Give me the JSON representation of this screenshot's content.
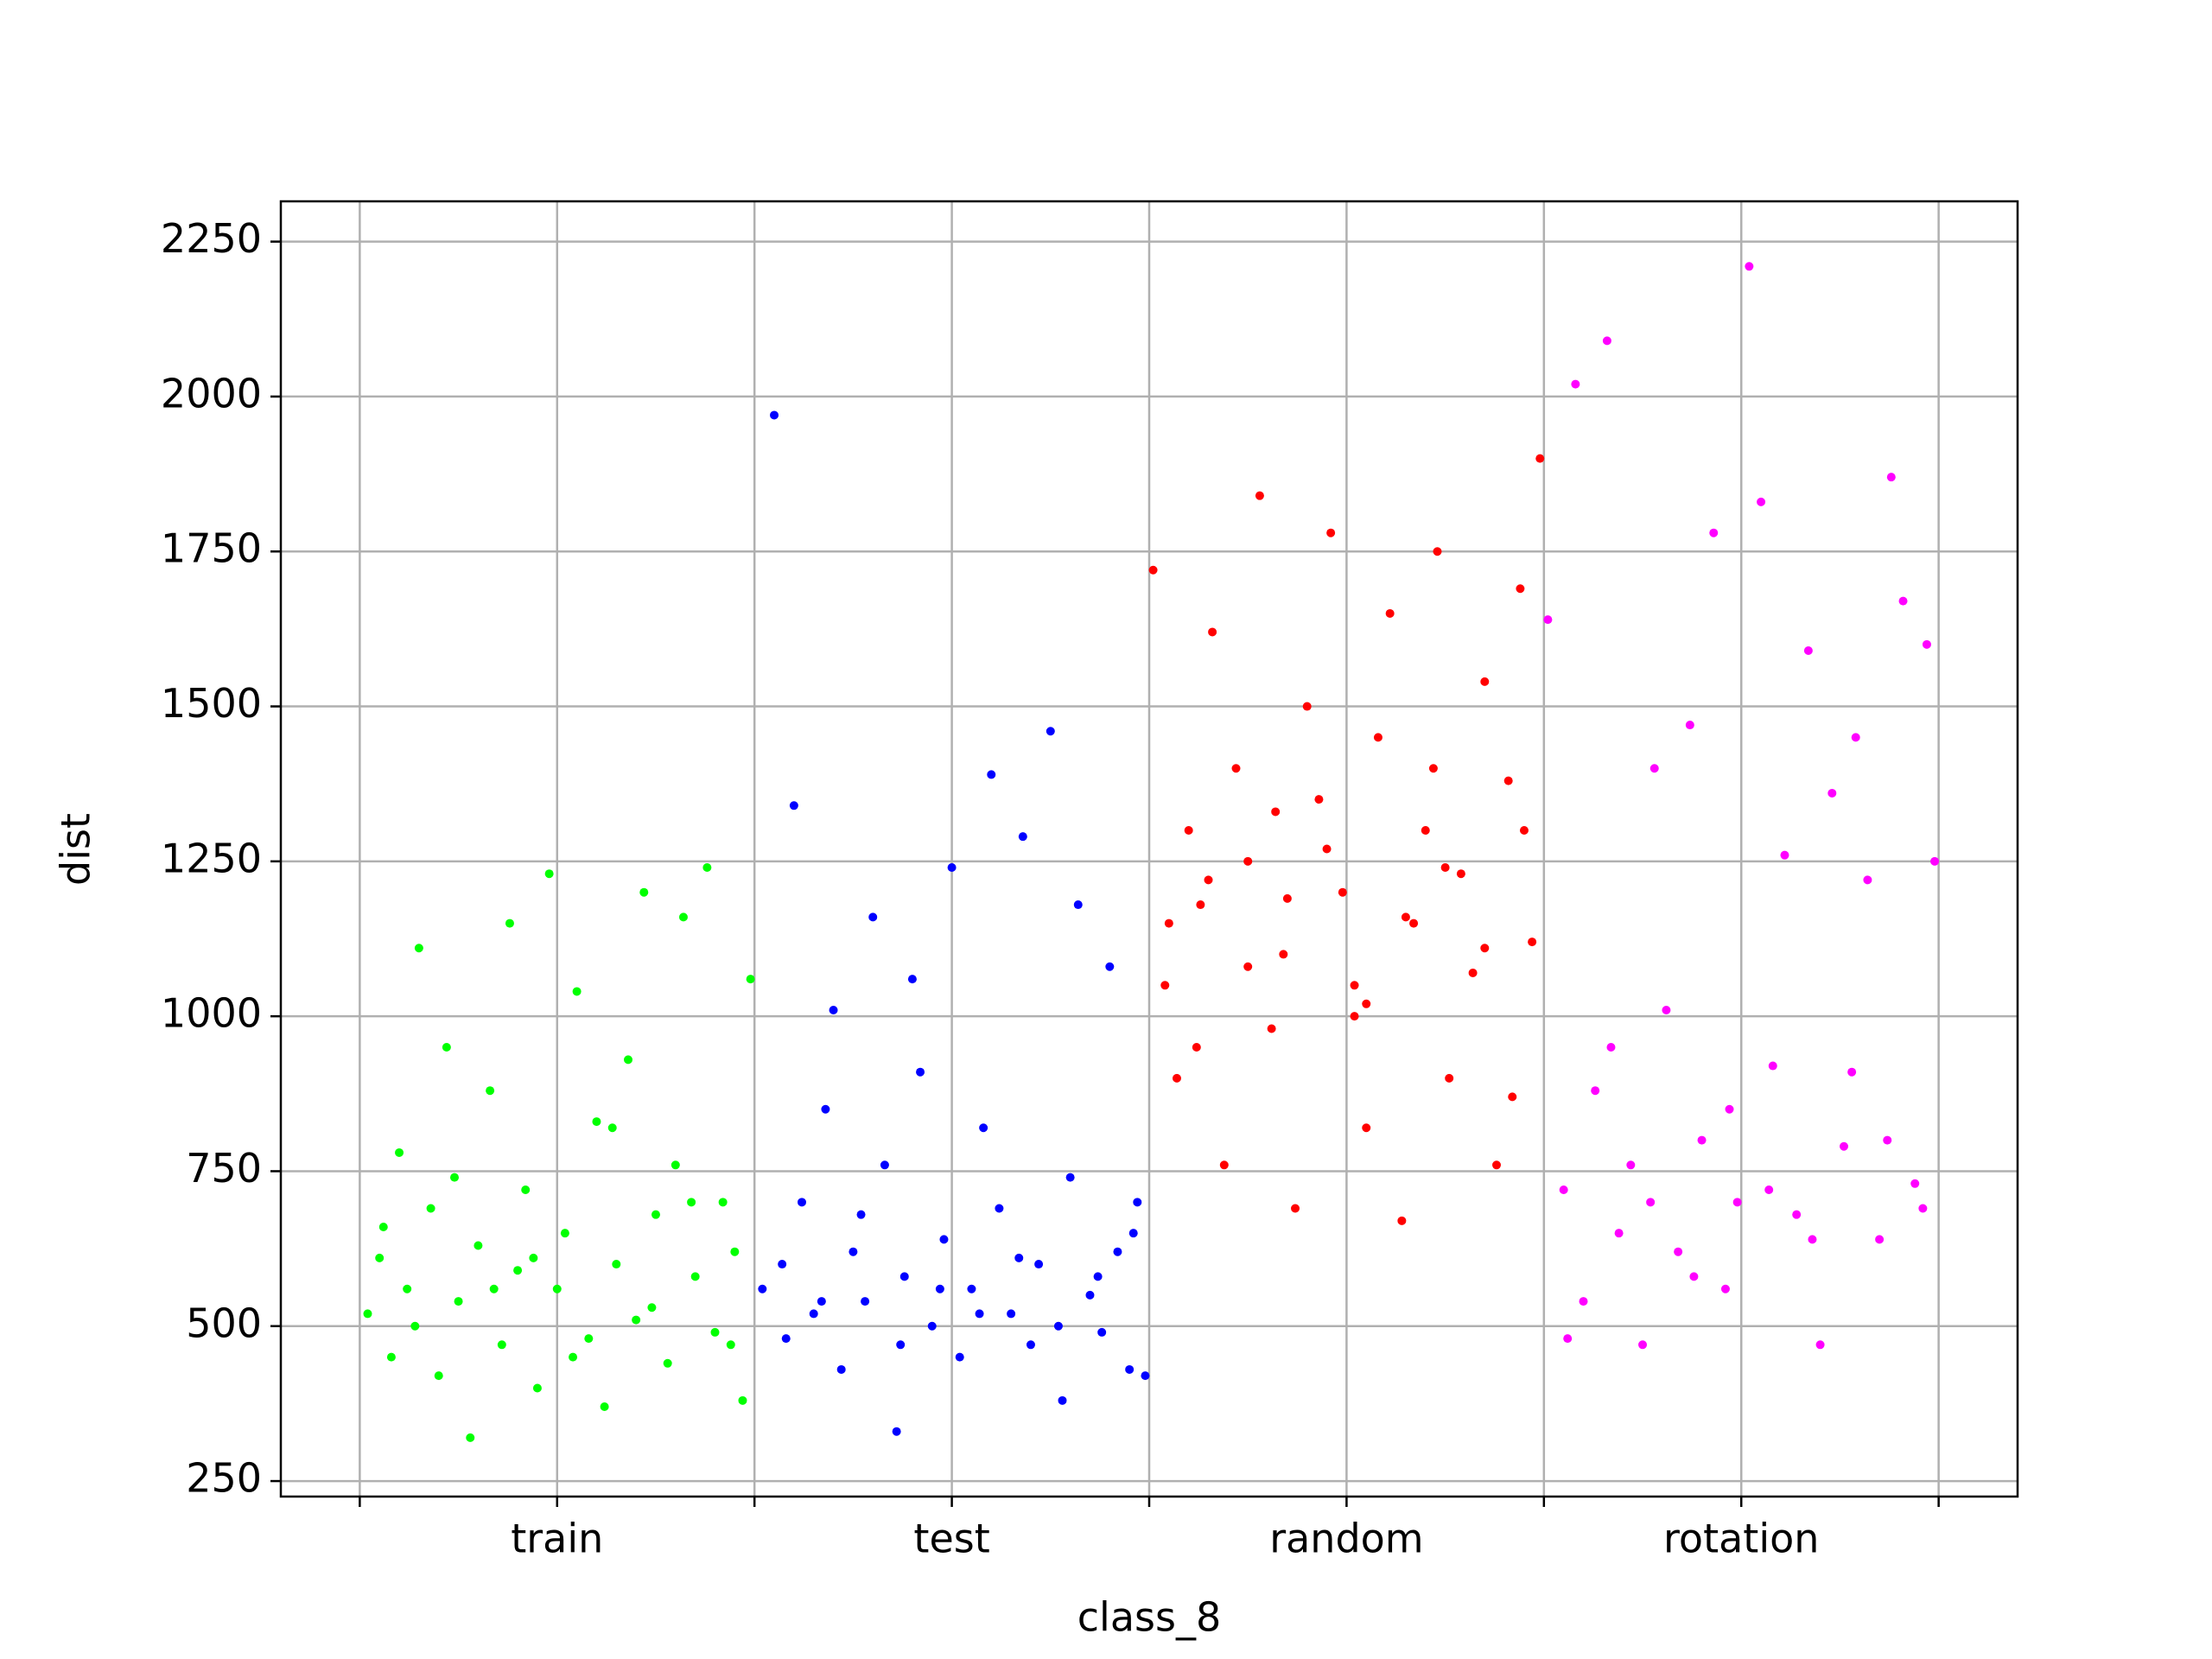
{
  "chart_data": {
    "type": "scatter",
    "xlabel": "class_8",
    "ylabel": "dist",
    "xlim": [
      -0.2,
      4.2
    ],
    "ylim": [
      225,
      2315
    ],
    "xticks": [
      {
        "value": 0,
        "label": null
      },
      {
        "value": 0.5,
        "label": "train"
      },
      {
        "value": 1,
        "label": null
      },
      {
        "value": 1.5,
        "label": "test"
      },
      {
        "value": 2,
        "label": null
      },
      {
        "value": 2.5,
        "label": "random"
      },
      {
        "value": 3,
        "label": null
      },
      {
        "value": 3.5,
        "label": "rotation"
      },
      {
        "value": 4,
        "label": null
      }
    ],
    "yticks": [
      250,
      500,
      750,
      1000,
      1250,
      1500,
      1750,
      2000,
      2250
    ],
    "grid": true,
    "series": [
      {
        "color": "#00ff00",
        "x": [
          0.02,
          0.05,
          0.08,
          0.1,
          0.12,
          0.15,
          0.18,
          0.2,
          0.22,
          0.25,
          0.28,
          0.3,
          0.33,
          0.36,
          0.38,
          0.4,
          0.42,
          0.45,
          0.48,
          0.5,
          0.52,
          0.55,
          0.58,
          0.6,
          0.62,
          0.65,
          0.68,
          0.7,
          0.72,
          0.75,
          0.78,
          0.8,
          0.82,
          0.85,
          0.88,
          0.9,
          0.92,
          0.95,
          0.97,
          0.99,
          0.06,
          0.14,
          0.24,
          0.34,
          0.44,
          0.54,
          0.64,
          0.74,
          0.84,
          0.94
        ],
        "values": [
          520,
          610,
          450,
          780,
          560,
          1110,
          690,
          420,
          950,
          540,
          320,
          630,
          880,
          470,
          1150,
          590,
          720,
          400,
          1230,
          560,
          650,
          1040,
          480,
          830,
          370,
          600,
          930,
          510,
          1200,
          680,
          440,
          760,
          1160,
          580,
          1240,
          490,
          700,
          620,
          380,
          1060,
          660,
          500,
          740,
          560,
          610,
          450,
          820,
          530,
          700,
          470
        ]
      },
      {
        "color": "#0000ff",
        "x": [
          1.02,
          1.05,
          1.08,
          1.1,
          1.12,
          1.15,
          1.18,
          1.2,
          1.22,
          1.25,
          1.28,
          1.3,
          1.33,
          1.36,
          1.38,
          1.4,
          1.42,
          1.45,
          1.48,
          1.5,
          1.52,
          1.55,
          1.58,
          1.6,
          1.62,
          1.65,
          1.68,
          1.7,
          1.72,
          1.75,
          1.78,
          1.8,
          1.82,
          1.85,
          1.88,
          1.9,
          1.92,
          1.95,
          1.97,
          1.99,
          1.07,
          1.17,
          1.27,
          1.37,
          1.47,
          1.57,
          1.67,
          1.77,
          1.87,
          1.96
        ],
        "values": [
          560,
          1970,
          480,
          1340,
          700,
          520,
          850,
          1010,
          430,
          620,
          540,
          1160,
          760,
          330,
          580,
          1060,
          910,
          500,
          640,
          1240,
          450,
          560,
          820,
          1390,
          690,
          520,
          1290,
          470,
          600,
          1460,
          380,
          740,
          1180,
          550,
          490,
          1080,
          620,
          430,
          700,
          420,
          600,
          540,
          680,
          470,
          560,
          520,
          610,
          500,
          580,
          650
        ]
      },
      {
        "color": "#ff0000",
        "x": [
          2.01,
          2.04,
          2.07,
          2.1,
          2.13,
          2.16,
          2.19,
          2.22,
          2.25,
          2.28,
          2.31,
          2.34,
          2.37,
          2.4,
          2.43,
          2.46,
          2.49,
          2.52,
          2.55,
          2.58,
          2.61,
          2.64,
          2.67,
          2.7,
          2.73,
          2.76,
          2.79,
          2.82,
          2.85,
          2.88,
          2.91,
          2.94,
          2.97,
          2.99,
          2.05,
          2.15,
          2.25,
          2.35,
          2.45,
          2.55,
          2.65,
          2.75,
          2.85,
          2.95,
          2.12,
          2.32,
          2.52,
          2.72,
          2.92
        ],
        "values": [
          1720,
          1050,
          900,
          1300,
          1180,
          1620,
          760,
          1400,
          1250,
          1840,
          980,
          1100,
          690,
          1500,
          1350,
          1780,
          1200,
          1050,
          820,
          1450,
          1650,
          670,
          1150,
          1300,
          1750,
          900,
          1230,
          1070,
          1540,
          760,
          1380,
          1690,
          1120,
          1900,
          1150,
          1220,
          1080,
          1190,
          1270,
          1020,
          1160,
          1240,
          1110,
          1300,
          950,
          1330,
          1000,
          1400,
          870
        ]
      },
      {
        "color": "#ff00ff",
        "x": [
          3.01,
          3.05,
          3.08,
          3.1,
          3.13,
          3.16,
          3.19,
          3.22,
          3.25,
          3.28,
          3.31,
          3.34,
          3.37,
          3.4,
          3.43,
          3.46,
          3.49,
          3.52,
          3.55,
          3.58,
          3.61,
          3.64,
          3.67,
          3.7,
          3.73,
          3.76,
          3.79,
          3.82,
          3.85,
          3.88,
          3.91,
          3.94,
          3.97,
          3.99,
          3.06,
          3.17,
          3.27,
          3.38,
          3.47,
          3.57,
          3.68,
          3.78,
          3.87,
          3.96
        ],
        "values": [
          1640,
          720,
          2020,
          540,
          880,
          2090,
          650,
          760,
          470,
          1400,
          1010,
          620,
          1470,
          800,
          1780,
          560,
          700,
          2210,
          1830,
          920,
          1260,
          680,
          1590,
          470,
          1360,
          790,
          1450,
          1220,
          640,
          1870,
          1670,
          730,
          1600,
          1250,
          480,
          950,
          700,
          580,
          850,
          720,
          640,
          910,
          800,
          690
        ]
      }
    ]
  }
}
